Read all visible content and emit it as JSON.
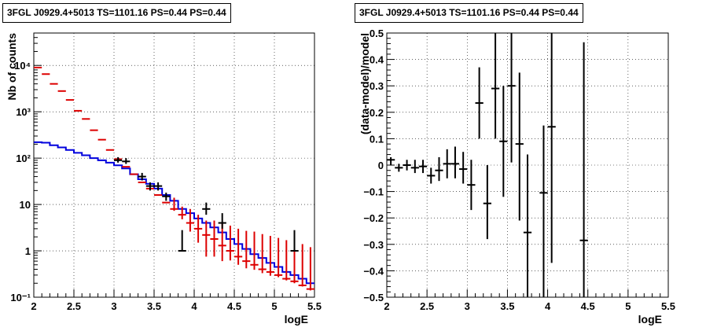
{
  "chart_data": [
    {
      "type": "step-histogram",
      "title": "3FGL J0929.4+5013 TS=1101.16 PS=0.44 PS=0.44",
      "xlabel": "logE",
      "ylabel": "Nb of counts",
      "xlim": [
        2,
        5.5
      ],
      "ylim": [
        0.1,
        50000
      ],
      "yscale": "log",
      "grid": true,
      "xticks": [
        "2",
        "2.5",
        "3",
        "3.5",
        "4",
        "4.5",
        "5",
        "5.5"
      ],
      "yticks": [
        "10⁻¹",
        "1",
        "10",
        "10²",
        "10³",
        "10⁴"
      ],
      "series": [
        {
          "color": "#0000dd",
          "x": [
            2.05,
            2.15,
            2.25,
            2.35,
            2.45,
            2.55,
            2.65,
            2.75,
            2.85,
            2.95,
            3.05,
            3.15,
            3.25,
            3.35,
            3.45,
            3.55,
            3.65,
            3.75,
            3.85,
            3.95,
            4.05,
            4.15,
            4.25,
            4.35,
            4.45,
            4.55,
            4.65,
            4.75,
            4.85,
            4.95,
            5.05,
            5.15,
            5.25,
            5.35,
            5.45
          ],
          "values": [
            220,
            215,
            190,
            170,
            150,
            130,
            115,
            100,
            90,
            80,
            70,
            60,
            45,
            35,
            28,
            22,
            16,
            12,
            8,
            6.5,
            5,
            4,
            3.2,
            2.5,
            1.8,
            1.4,
            1.1,
            0.85,
            0.7,
            0.55,
            0.45,
            0.35,
            0.3,
            0.25,
            0.2
          ]
        },
        {
          "color": "#dd0000",
          "x": [
            2.05,
            2.15,
            2.25,
            2.35,
            2.45,
            2.55,
            2.65,
            2.75,
            2.85,
            2.95,
            3.05,
            3.15,
            3.25,
            3.35,
            3.45,
            3.55,
            3.65,
            3.75,
            3.85,
            3.95,
            4.05,
            4.15,
            4.25,
            4.35,
            4.45,
            4.55,
            4.65,
            4.75,
            4.85,
            4.95,
            5.05,
            5.15,
            5.25,
            5.35,
            5.45
          ],
          "y": [
            9000,
            6500,
            4000,
            2800,
            1800,
            1050,
            700,
            400,
            250,
            150,
            95,
            65,
            45,
            30,
            22,
            16,
            11,
            8,
            6,
            4,
            3,
            2.2,
            1.8,
            1.3,
            1,
            0.75,
            0.6,
            0.5,
            0.4,
            0.35,
            0.3,
            0.25,
            0.22,
            0.18,
            0.15
          ],
          "yerr_lo": [
            9000,
            6500,
            4000,
            2800,
            1800,
            1050,
            700,
            400,
            250,
            150,
            95,
            65,
            45,
            30,
            22,
            16,
            11,
            7.3,
            4.8,
            2.6,
            1.5,
            0.75,
            0.75,
            0.6,
            0.62,
            0.5,
            0.42,
            0.39,
            0.33,
            0.29,
            0.27,
            0.23,
            0.2,
            0.17,
            0.14
          ],
          "yerr_hi": [
            9000,
            6500,
            4000,
            2800,
            1800,
            1050,
            700,
            400,
            250,
            150,
            95,
            65,
            45,
            30,
            22,
            16,
            11,
            14,
            9,
            8,
            6,
            4.5,
            4.5,
            4,
            3.5,
            3,
            2.7,
            2.6,
            2.3,
            2.1,
            1.9,
            1.7,
            1.6,
            1.4,
            1.2
          ]
        },
        {
          "color": "#000000",
          "x": [
            3.05,
            3.15,
            3.35,
            3.45,
            3.55,
            3.65,
            3.85,
            4.15,
            4.35,
            5.25
          ],
          "y": [
            90,
            85,
            40,
            25,
            25,
            15,
            1,
            8,
            4,
            1
          ],
          "yerr_lo": [
            80,
            75,
            33,
            20,
            20,
            12,
            1,
            6,
            3,
            1
          ],
          "yerr_hi": [
            105,
            100,
            48,
            30,
            30,
            18,
            2.8,
            11,
            6.5,
            2.8
          ]
        }
      ]
    },
    {
      "type": "scatter-errorbar",
      "title": "3FGL J0929.4+5013 TS=1101.16 PS=0.44 PS=0.44",
      "xlabel": "logE",
      "ylabel": "(data-model)/model",
      "xlim": [
        2,
        5.5
      ],
      "ylim": [
        -0.5,
        0.5
      ],
      "grid": true,
      "xticks": [
        "2",
        "2.5",
        "3",
        "3.5",
        "4",
        "4.5",
        "5",
        "5.5"
      ],
      "yticks": [
        "−0.5",
        "−0.4",
        "−0.3",
        "−0.2",
        "−0.1",
        "0",
        "0.1",
        "0.2",
        "0.3",
        "0.4",
        "0.5"
      ],
      "points": {
        "x": [
          2.05,
          2.15,
          2.25,
          2.35,
          2.45,
          2.55,
          2.65,
          2.75,
          2.85,
          2.95,
          3.05,
          3.15,
          3.25,
          3.35,
          3.45,
          3.55,
          3.65,
          3.75,
          3.95,
          4.05,
          4.45
        ],
        "y": [
          0.02,
          -0.01,
          0.0,
          -0.01,
          -0.005,
          -0.04,
          -0.02,
          0.005,
          0.005,
          -0.015,
          -0.075,
          0.235,
          -0.145,
          0.29,
          0.09,
          0.3,
          0.08,
          -0.255,
          -0.105,
          0.145,
          -0.285
        ],
        "ylo": [
          0.0,
          -0.025,
          -0.02,
          -0.03,
          -0.03,
          -0.07,
          -0.06,
          -0.05,
          -0.05,
          -0.07,
          -0.17,
          0.1,
          -0.28,
          0.1,
          -0.12,
          0.01,
          -0.21,
          -0.55,
          -0.55,
          -0.37,
          -0.55
        ],
        "yhi": [
          0.03,
          0.005,
          0.02,
          0.02,
          0.02,
          -0.01,
          0.03,
          0.06,
          0.07,
          0.05,
          0.02,
          0.37,
          0.0,
          0.5,
          0.3,
          0.5,
          0.35,
          0.04,
          0.15,
          0.5,
          0.465
        ],
        "xerr": 0.05
      }
    }
  ]
}
